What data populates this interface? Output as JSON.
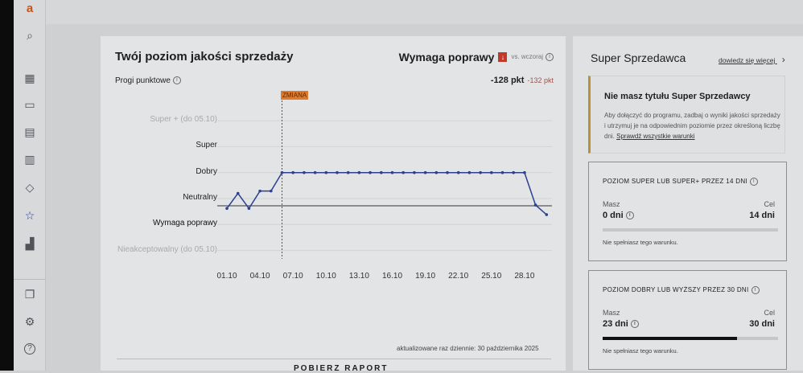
{
  "sidebar": {
    "logo": "a",
    "items": [
      {
        "icon": "search-icon",
        "glyph": "⌕"
      },
      {
        "icon": "dashboard-grid-icon",
        "glyph": "▦"
      },
      {
        "icon": "wallet-icon",
        "glyph": "▭"
      },
      {
        "icon": "document-icon",
        "glyph": "▤"
      },
      {
        "icon": "invoice-icon",
        "glyph": "▥"
      },
      {
        "icon": "tag-icon",
        "glyph": "◇"
      },
      {
        "icon": "star-icon",
        "glyph": "☆"
      },
      {
        "icon": "analytics-icon",
        "glyph": "▟"
      },
      {
        "icon": "messages-icon",
        "glyph": "❐"
      },
      {
        "icon": "settings-gear-icon",
        "glyph": "⚙"
      },
      {
        "icon": "help-icon",
        "glyph": "?"
      }
    ],
    "active_color": "#2c3a8c"
  },
  "quality": {
    "title": "Twój poziom jakości sprzedaży",
    "status": "Wymaga poprawy",
    "vs_label": "vs. wczoraj",
    "trend_icon": "arrow-down-icon",
    "trend_color": "#c0392b",
    "thresholds_label": "Progi punktowe",
    "points": "-128 pkt",
    "points_previous": "-132 pkt",
    "change_marker": "ZMIANA",
    "change_marker_color": "#e07a2a",
    "updated": "aktualizowane raz dziennie: 30 października 2025",
    "download": "POBIERZ RAPORT"
  },
  "chart_data": {
    "type": "line",
    "y_levels": [
      {
        "label": "Super + (do 05.10)",
        "value": 4,
        "faded": true
      },
      {
        "label": "Super",
        "value": 3,
        "faded": false
      },
      {
        "label": "Dobry",
        "value": 2,
        "faded": false
      },
      {
        "label": "Neutralny",
        "value": 1,
        "faded": false
      },
      {
        "label": "Wymaga poprawy",
        "value": 0,
        "faded": false,
        "bold": true
      },
      {
        "label": "Nieakceptowalny (do 05.10)",
        "value": -1,
        "faded": true
      }
    ],
    "x_ticks": [
      "01.10",
      "04.10",
      "07.10",
      "10.10",
      "13.10",
      "16.10",
      "19.10",
      "22.10",
      "25.10",
      "28.10"
    ],
    "dates": [
      "01.10",
      "02.10",
      "03.10",
      "04.10",
      "05.10",
      "06.10",
      "07.10",
      "08.10",
      "09.10",
      "10.10",
      "11.10",
      "12.10",
      "13.10",
      "14.10",
      "15.10",
      "16.10",
      "17.10",
      "18.10",
      "19.10",
      "20.10",
      "21.10",
      "22.10",
      "23.10",
      "24.10",
      "25.10",
      "26.10",
      "27.10",
      "28.10",
      "29.10",
      "30.10"
    ],
    "values": [
      0.62,
      1.2,
      0.62,
      1.29,
      1.29,
      2,
      2,
      2,
      2,
      2,
      2,
      2,
      2,
      2,
      2,
      2,
      2,
      2,
      2,
      2,
      2,
      2,
      2,
      2,
      2,
      2,
      2,
      2,
      0.75,
      0.38
    ],
    "reference_line": 0.72,
    "change_date": "06.10",
    "series_color": "#2d3f8f",
    "grid": true
  },
  "super_seller": {
    "title": "Super Sprzedawca",
    "learn_more": "dowiedz się więcej",
    "notice_title": "Nie masz tytułu Super Sprzedawcy",
    "notice_text": "Aby dołączyć do programu, zadbaj o wyniki jakości sprzedaży i utrzymuj je na odpowiednim poziomie przez określoną liczbę dni.",
    "notice_link": "Sprawdź wszystkie warunki",
    "notice_accent": "#b8923a",
    "conditions": [
      {
        "title": "POZIOM SUPER LUB SUPER+ PRZEZ 14 DNI",
        "have_label": "Masz",
        "have": "0 dni",
        "goal_label": "Cel",
        "goal": "14 dni",
        "progress": 0,
        "status": "Nie spełniasz tego warunku."
      },
      {
        "title": "POZIOM DOBRY LUB WYŻSZY PRZEZ 30 DNI",
        "have_label": "Masz",
        "have": "23 dni",
        "goal_label": "Cel",
        "goal": "30 dni",
        "progress": 0.7667,
        "status": "Nie spełniasz tego warunku."
      }
    ]
  }
}
